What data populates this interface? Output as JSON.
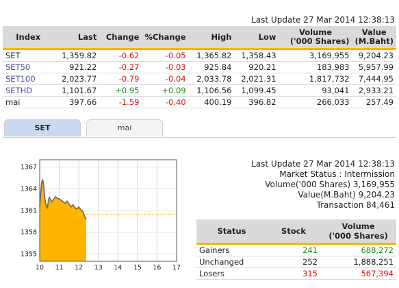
{
  "last_update_top": "Last Update 27 Mar 2014 12:38:13",
  "index_table": {
    "headers": {
      "index": "Index",
      "last": "Last",
      "change": "Change",
      "pchange": "%Change",
      "high": "High",
      "low": "Low",
      "volume_1": "Volume",
      "volume_2": "('000 Shares)",
      "value_1": "Value",
      "value_2": "(M.Baht)"
    },
    "rows": [
      {
        "index": "SET",
        "last": "1,359.82",
        "change": "-0.62",
        "pchange": "-0.05",
        "high": "1,365.82",
        "low": "1,358.43",
        "volume": "3,169,955",
        "value": "9,204.23"
      },
      {
        "index": "SET50",
        "last": "921.22",
        "change": "-0.27",
        "pchange": "-0.03",
        "high": "925.84",
        "low": "920.21",
        "volume": "183,983",
        "value": "5,957.99"
      },
      {
        "index": "SET100",
        "last": "2,023.77",
        "change": "-0.79",
        "pchange": "-0.04",
        "high": "2,033.78",
        "low": "2,021.31",
        "volume": "1,817,732",
        "value": "7,444.95"
      },
      {
        "index": "SETHD",
        "last": "1,101.67",
        "change": "+0.95",
        "pchange": "+0.09",
        "high": "1,106.56",
        "low": "1,099.45",
        "volume": "93,041",
        "value": "2,933.21"
      },
      {
        "index": "mai",
        "last": "397.66",
        "change": "-1.59",
        "pchange": "-0.40",
        "high": "400.19",
        "low": "396.82",
        "volume": "266,033",
        "value": "257.49"
      }
    ]
  },
  "tabs": [
    {
      "label": "SET",
      "active": true
    },
    {
      "label": "mai",
      "active": false
    }
  ],
  "chart_data": {
    "type": "area",
    "x_ticks": [
      "10",
      "11",
      "12",
      "13",
      "14",
      "15",
      "16",
      "17"
    ],
    "y_ticks": [
      "1367",
      "1364",
      "1361",
      "1358",
      "1355"
    ],
    "xlim": [
      10,
      17
    ],
    "ylim": [
      1354,
      1368
    ],
    "previous_close": 1360.44,
    "colors": {
      "area": "#ffb400",
      "line": "#666666",
      "prev_close": "#f2b600"
    },
    "x": [
      10.0,
      10.05,
      10.1,
      10.15,
      10.2,
      10.25,
      10.3,
      10.35,
      10.4,
      10.45,
      10.5,
      10.6,
      10.7,
      10.8,
      10.9,
      11.0,
      11.1,
      11.2,
      11.3,
      11.4,
      11.5,
      11.6,
      11.7,
      11.8,
      11.9,
      12.0,
      12.1,
      12.2,
      12.3,
      12.38
    ],
    "y": [
      1361.5,
      1363.2,
      1364.8,
      1365.3,
      1364.6,
      1363.0,
      1362.0,
      1361.6,
      1361.4,
      1362.5,
      1362.8,
      1362.2,
      1362.5,
      1362.9,
      1362.7,
      1362.6,
      1362.4,
      1362.2,
      1362.0,
      1362.3,
      1361.9,
      1361.5,
      1361.8,
      1361.4,
      1361.2,
      1361.5,
      1361.1,
      1360.9,
      1360.2,
      1359.8
    ]
  },
  "market_info": {
    "last_update": "Last Update 27 Mar 2014 12:38:13",
    "status": "Market Status : Intermission",
    "volume": "Volume('000 Shares) 3,169,955",
    "value": "Value(M.Baht) 9,204.23",
    "transaction": "Transaction 84,461"
  },
  "status_table": {
    "headers": {
      "status": "Status",
      "stock": "Stock",
      "volume_1": "Volume",
      "volume_2": "('000 Shares)"
    },
    "rows": [
      {
        "status": "Gainers",
        "stock": "241",
        "volume": "688,272",
        "color": "#1a8a1a"
      },
      {
        "status": "Unchanged",
        "stock": "252",
        "volume": "1,888,251",
        "color": "#222222"
      },
      {
        "status": "Losers",
        "stock": "315",
        "volume": "567,394",
        "color": "#e01010"
      }
    ]
  }
}
